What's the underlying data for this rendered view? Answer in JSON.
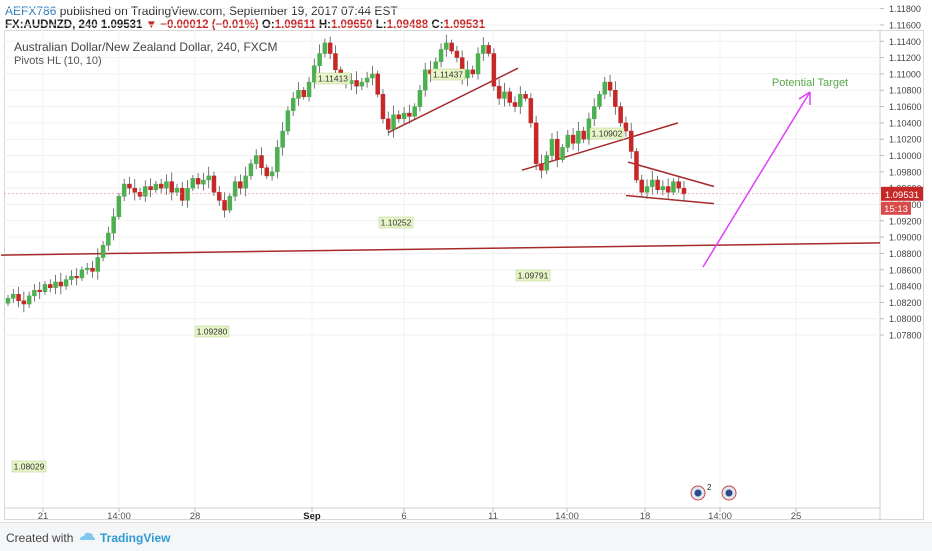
{
  "header": {
    "user": "AEFX786",
    "published": "published on TradingView.com, September 19, 2017 07:44 EST",
    "symbol": "FX:AUDNZD, 240",
    "last": "1.09531",
    "change_arrow": "▼",
    "change": "−0.00012 (−0.01%)",
    "o_label": "O:",
    "o": "1.09611",
    "h_label": "H:",
    "h": "1.09650",
    "l_label": "L:",
    "l": "1.09488",
    "c_label": "C:",
    "c": "1.09531"
  },
  "chart_title": "Australian Dollar/New Zealand Dollar, 240, FXCM",
  "indicator": "Pivots HL (10, 10)",
  "annotation": "Potential Target",
  "footer": {
    "created_with": "Created with",
    "brand": "TradingView"
  },
  "colors": {
    "up": "#4caf50",
    "down": "#c62828",
    "trend": "#a52a2a",
    "target": "#e040fb",
    "label_bg": "#e8f5c8"
  },
  "chart_data": {
    "type": "candlestick",
    "ylim": [
      1.077,
      1.1195
    ],
    "y_ticks": [
      "1.11800",
      "1.11600",
      "1.11400",
      "1.11200",
      "1.11000",
      "1.10800",
      "1.10600",
      "1.10400",
      "1.10200",
      "1.10000",
      "1.09800",
      "1.09600",
      "1.09400",
      "1.09200",
      "1.09000",
      "1.08800",
      "1.08600",
      "1.08400",
      "1.08200",
      "1.08000",
      "1.07800"
    ],
    "x_ticks": [
      "21",
      "14:00",
      "28",
      "Sep",
      "6",
      "11",
      "14:00",
      "18",
      "14:00",
      "25"
    ],
    "price_label": "1.09531",
    "countdown_label": "15:13",
    "pivot_labels": [
      "1.08029",
      "1.09280",
      "1.11413",
      "1.10252",
      "1.11437",
      "1.09791",
      "1.10902"
    ],
    "close_path": [
      1.0825,
      1.083,
      1.0822,
      1.0818,
      1.0828,
      1.0835,
      1.0833,
      1.0842,
      1.0838,
      1.0845,
      1.084,
      1.0848,
      1.0852,
      1.085,
      1.086,
      1.0862,
      1.0858,
      1.0875,
      1.089,
      1.0905,
      1.0925,
      1.095,
      1.0965,
      1.096,
      1.0955,
      1.095,
      1.0962,
      1.0958,
      1.0965,
      1.096,
      1.0968,
      1.0955,
      1.096,
      1.0945,
      1.096,
      1.0972,
      1.0965,
      1.097,
      1.0975,
      1.0955,
      1.0945,
      1.0933,
      1.095,
      1.0968,
      1.096,
      1.0975,
      1.099,
      1.1,
      1.0985,
      1.0975,
      1.098,
      1.101,
      1.103,
      1.1055,
      1.107,
      1.108,
      1.1072,
      1.109,
      1.111,
      1.1125,
      1.1138,
      1.1125,
      1.1105,
      1.1095,
      1.1088,
      1.1092,
      1.1085,
      1.109,
      1.1095,
      1.11,
      1.1075,
      1.1045,
      1.1032,
      1.105,
      1.1045,
      1.1052,
      1.1048,
      1.106,
      1.108,
      1.1105,
      1.11,
      1.1115,
      1.113,
      1.1138,
      1.1128,
      1.112,
      1.1095,
      1.1105,
      1.11,
      1.1125,
      1.1135,
      1.1125,
      1.1085,
      1.107,
      1.1078,
      1.1065,
      1.106,
      1.1075,
      1.107,
      1.104,
      1.099,
      1.0982,
      1.1,
      1.102,
      1.0995,
      1.101,
      1.1025,
      1.1015,
      1.103,
      1.102,
      1.1045,
      1.106,
      1.1075,
      1.109,
      1.108,
      1.106,
      1.104,
      1.103,
      1.1005,
      1.097,
      1.0955,
      1.0962,
      1.097,
      1.0958,
      1.0962,
      1.0955,
      1.0968,
      1.096,
      1.0953
    ],
    "trendlines": [
      {
        "name": "support-trendline",
        "points": [
          [
            1,
            1.0878
          ],
          [
            880,
            1.0893
          ]
        ]
      },
      {
        "name": "rising-trendline-1",
        "points": [
          [
            388,
            1.1028
          ],
          [
            518,
            1.1107
          ]
        ]
      },
      {
        "name": "rising-trendline-2",
        "points": [
          [
            522,
            1.0982
          ],
          [
            678,
            1.104
          ]
        ]
      },
      {
        "name": "upper-flag-line",
        "points": [
          [
            628,
            1.0992
          ],
          [
            714,
            1.0962
          ]
        ]
      },
      {
        "name": "lower-flag-line",
        "points": [
          [
            626,
            1.0951
          ],
          [
            714,
            1.0941
          ]
        ]
      }
    ]
  }
}
